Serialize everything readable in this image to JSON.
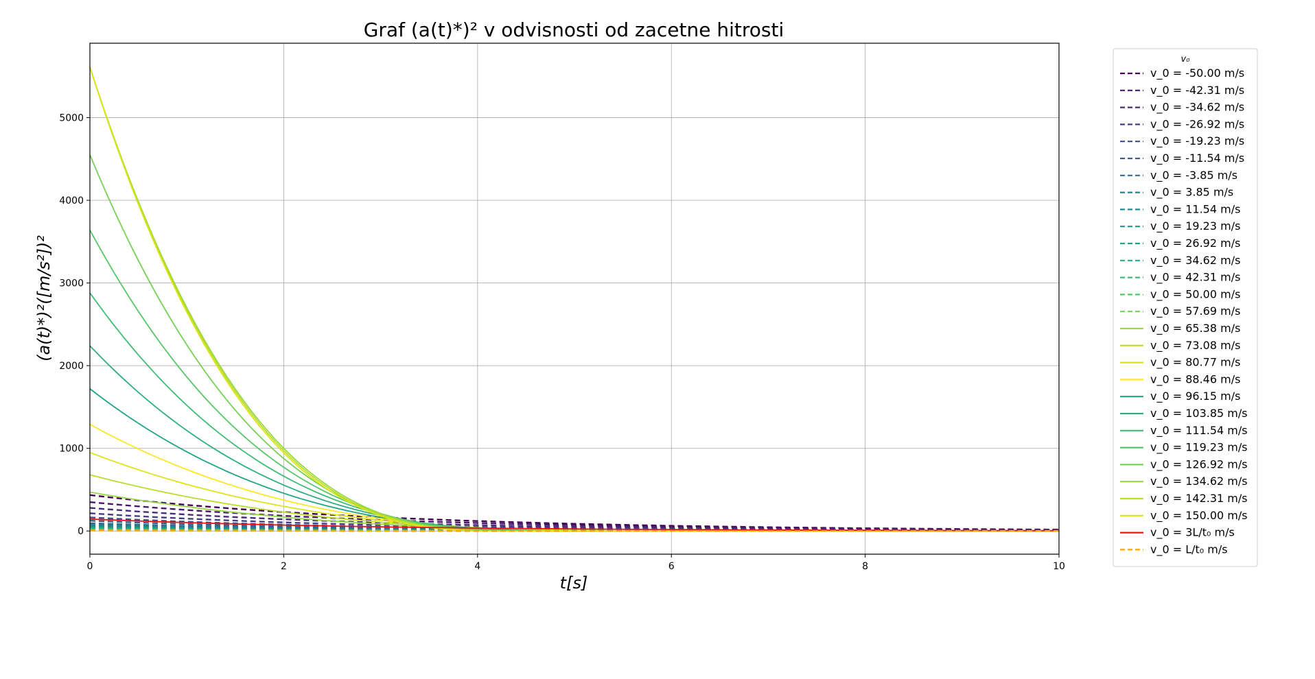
{
  "chart_data": {
    "type": "line",
    "title": "Graf (a(t)*)² v odvisnosti od zacetne hitrosti",
    "xlabel": "t[s]",
    "ylabel": "(a(t)*)²([m/s²])²",
    "xlim": [
      0,
      10
    ],
    "ylim": [
      -280,
      5900
    ],
    "x_ticks": [
      0,
      2,
      4,
      6,
      8,
      10
    ],
    "y_ticks": [
      0,
      1000,
      2000,
      3000,
      4000,
      5000
    ],
    "grid": true,
    "legend_placement": "outside-right",
    "legend_title": "v₀",
    "series": [
      {
        "name": "v_0 = -50.00 m/s",
        "color": "#440154",
        "dash": true,
        "shape": "decay",
        "y0": 435,
        "tc": 4.6,
        "decay": 0.32
      },
      {
        "name": "v_0 = -42.31 m/s",
        "color": "#481769",
        "dash": true,
        "shape": "decay",
        "y0": 350,
        "tc": 4.4,
        "decay": 0.32
      },
      {
        "name": "v_0 = -34.62 m/s",
        "color": "#472a7a",
        "dash": true,
        "shape": "decay",
        "y0": 280,
        "tc": 4.2,
        "decay": 0.34
      },
      {
        "name": "v_0 = -26.92 m/s",
        "color": "#433d84",
        "dash": true,
        "shape": "decay",
        "y0": 215,
        "tc": 4.1,
        "decay": 0.36
      },
      {
        "name": "v_0 = -19.23 m/s",
        "color": "#3d4e8a",
        "dash": true,
        "shape": "decay",
        "y0": 165,
        "tc": 4.0,
        "decay": 0.38
      },
      {
        "name": "v_0 = -11.54 m/s",
        "color": "#355e8d",
        "dash": true,
        "shape": "decay",
        "y0": 125,
        "tc": 3.9,
        "decay": 0.4
      },
      {
        "name": "v_0 = -3.85 m/s",
        "color": "#2e6d8e",
        "dash": true,
        "shape": "decay",
        "y0": 95,
        "tc": 3.8,
        "decay": 0.42
      },
      {
        "name": "v_0 = 3.85 m/s",
        "color": "#297b8e",
        "dash": true,
        "shape": "decay",
        "y0": 75,
        "tc": 3.7,
        "decay": 0.45
      },
      {
        "name": "v_0 = 11.54 m/s",
        "color": "#23898e",
        "dash": true,
        "shape": "decay",
        "y0": 60,
        "tc": 3.6,
        "decay": 0.48
      },
      {
        "name": "v_0 = 19.23 m/s",
        "color": "#1f968b",
        "dash": true,
        "shape": "decay",
        "y0": 50,
        "tc": 3.5,
        "decay": 0.5
      },
      {
        "name": "v_0 = 26.92 m/s",
        "color": "#20a386",
        "dash": true,
        "shape": "decay",
        "y0": 40,
        "tc": 3.4,
        "decay": 0.52
      },
      {
        "name": "v_0 = 34.62 m/s",
        "color": "#29af7f",
        "dash": true,
        "shape": "decay",
        "y0": 30,
        "tc": 3.3,
        "decay": 0.55
      },
      {
        "name": "v_0 = 42.31 m/s",
        "color": "#3dbc74",
        "dash": true,
        "shape": "decay",
        "y0": 22,
        "tc": 3.2,
        "decay": 0.58
      },
      {
        "name": "v_0 = 50.00 m/s",
        "color": "#56c667",
        "dash": true,
        "shape": "decay",
        "y0": 15,
        "tc": 3.1,
        "decay": 0.6
      },
      {
        "name": "v_0 = 57.69 m/s",
        "color": "#75d054",
        "dash": true,
        "shape": "decay",
        "y0": 10,
        "tc": 3.0,
        "decay": 0.62
      },
      {
        "name": "v_0 = 65.38 m/s",
        "color": "#95d840",
        "dash": false,
        "shape": "pow",
        "y0": 470,
        "tc": 6.5,
        "p": 2.8
      },
      {
        "name": "v_0 = 73.08 m/s",
        "color": "#b8de29",
        "dash": false,
        "shape": "pow",
        "y0": 680,
        "tc": 6.2,
        "p": 2.8
      },
      {
        "name": "v_0 = 80.77 m/s",
        "color": "#dde318",
        "dash": false,
        "shape": "pow",
        "y0": 950,
        "tc": 5.9,
        "p": 2.8
      },
      {
        "name": "v_0 = 88.46 m/s",
        "color": "#fde725",
        "dash": false,
        "shape": "pow",
        "y0": 1290,
        "tc": 5.6,
        "p": 2.8
      },
      {
        "name": "v_0 = 96.15 m/s",
        "color": "#20a386",
        "dash": false,
        "shape": "pow",
        "y0": 1720,
        "tc": 5.3,
        "p": 2.8
      },
      {
        "name": "v_0 = 103.85 m/s",
        "color": "#29af7f",
        "dash": false,
        "shape": "pow",
        "y0": 2240,
        "tc": 5.1,
        "p": 2.8
      },
      {
        "name": "v_0 = 111.54 m/s",
        "color": "#3dbc74",
        "dash": false,
        "shape": "pow",
        "y0": 2880,
        "tc": 4.9,
        "p": 2.8
      },
      {
        "name": "v_0 = 119.23 m/s",
        "color": "#56c667",
        "dash": false,
        "shape": "pow",
        "y0": 3640,
        "tc": 4.7,
        "p": 2.8
      },
      {
        "name": "v_0 = 126.92 m/s",
        "color": "#75d054",
        "dash": false,
        "shape": "pow",
        "y0": 4550,
        "tc": 4.5,
        "p": 2.8
      },
      {
        "name": "v_0 = 134.62 m/s",
        "color": "#95d840",
        "dash": false,
        "shape": "pow",
        "y0": 5610,
        "tc": 4.35,
        "p": 2.8
      },
      {
        "name": "v_0 = 142.31 m/s",
        "color": "#b8de29",
        "dash": false,
        "shape": "pow",
        "y0": 5610,
        "tc": 4.3,
        "p": 2.8
      },
      {
        "name": "v_0 = 150.00 m/s",
        "color": "#dde318",
        "dash": false,
        "shape": "pow",
        "y0": 5610,
        "tc": 4.25,
        "p": 2.8
      },
      {
        "name": "v_0 = 3L/t₀ m/s",
        "color": "#ee1111",
        "dash": false,
        "shape": "decay",
        "y0": 145,
        "tc": 10,
        "decay": 0.35
      },
      {
        "name": "v_0 = L/t₀ m/s",
        "color": "#ffa500",
        "dash": true,
        "shape": "decay",
        "y0": 8,
        "tc": 10,
        "decay": 0.35
      }
    ]
  }
}
